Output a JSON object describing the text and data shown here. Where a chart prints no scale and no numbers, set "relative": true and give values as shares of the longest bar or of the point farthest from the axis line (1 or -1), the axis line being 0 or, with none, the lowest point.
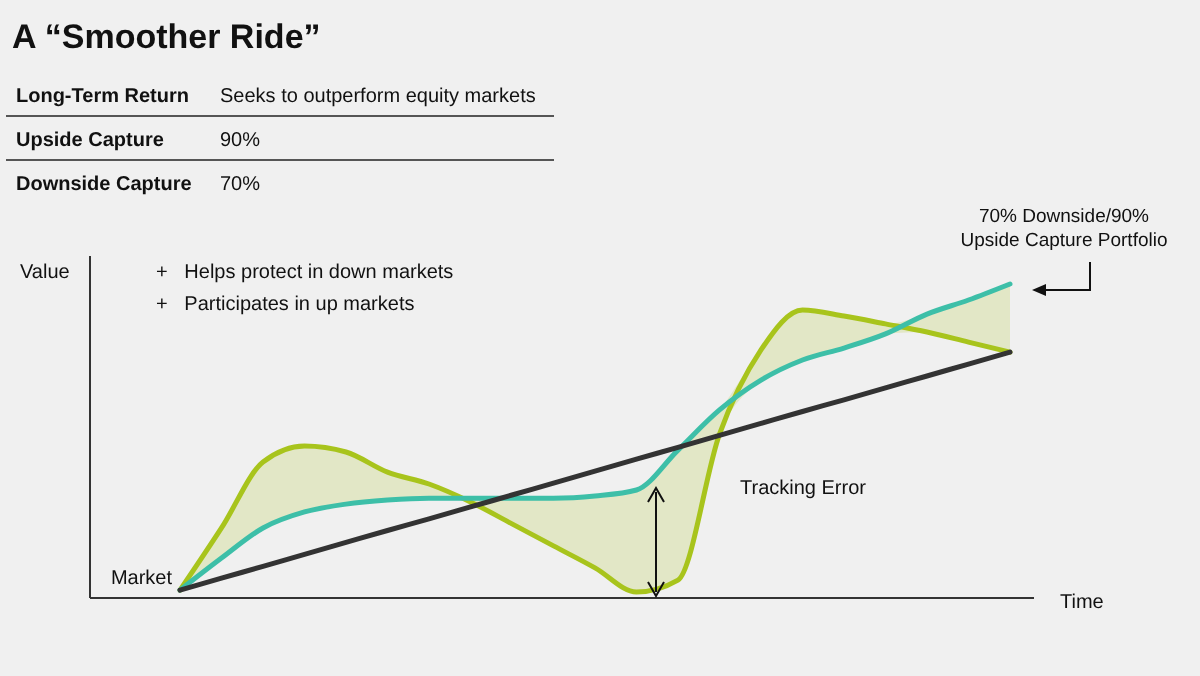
{
  "chart_data": {
    "type": "line",
    "relative": true,
    "title": "A “Smoother Ride”",
    "xlabel": "Time",
    "ylabel": "Value",
    "categories": [
      null,
      null,
      null,
      null,
      null,
      null,
      null,
      null,
      null,
      null,
      null,
      null,
      null,
      null,
      null,
      null,
      null,
      null,
      null,
      null,
      null
    ],
    "series": [
      {
        "color": "#a8c41c",
        "values": [
          0.025,
          0.223,
          0.433,
          0.484,
          0.465,
          0.401,
          0.363,
          0.306,
          0.236,
          0.166,
          0.096,
          0.019,
          0.057,
          0.522,
          0.79,
          0.917,
          0.898,
          0.873,
          0.847,
          0.815,
          0.783
        ],
        "lower": [
          0.025,
          0.127,
          0.223,
          0.274,
          0.299,
          0.312,
          0.318,
          0.306,
          0.236,
          0.166,
          0.096,
          0.019,
          0.057,
          0.522,
          0.694,
          0.758,
          0.796,
          0.841,
          0.847,
          0.815,
          0.783
        ],
        "upper": [
          0.025,
          0.223,
          0.433,
          0.484,
          0.465,
          0.401,
          0.363,
          0.318,
          0.318,
          0.318,
          0.325,
          0.344,
          0.471,
          0.599,
          0.79,
          0.917,
          0.898,
          0.873,
          0.904,
          0.949,
          1
        ]
      },
      {
        "name": "70% Downside/90% Upside Capture Portfolio",
        "color": "#3dbfa8",
        "values": [
          0.025,
          0.127,
          0.223,
          0.274,
          0.299,
          0.312,
          0.318,
          0.318,
          0.318,
          0.318,
          0.325,
          0.344,
          0.471,
          0.599,
          0.694,
          0.758,
          0.796,
          0.841,
          0.904,
          0.949,
          1
        ]
      },
      {
        "name": "Market",
        "color": "#333333",
        "values": [
          0.025,
          0.063,
          0.101,
          0.139,
          0.177,
          0.215,
          0.252,
          0.29,
          0.328,
          0.366,
          0.404,
          0.442,
          0.48,
          0.518,
          0.556,
          0.594,
          0.631,
          0.669,
          0.707,
          0.745,
          0.783
        ]
      }
    ],
    "annotations": [
      "Long-Term Return",
      "Seeks to outperform equity markets",
      "Upside Capture",
      "90%",
      "Downside Capture",
      "70%",
      "+   Helps protect in down markets",
      "+   Participates in up markets",
      "Tracking Error"
    ]
  }
}
